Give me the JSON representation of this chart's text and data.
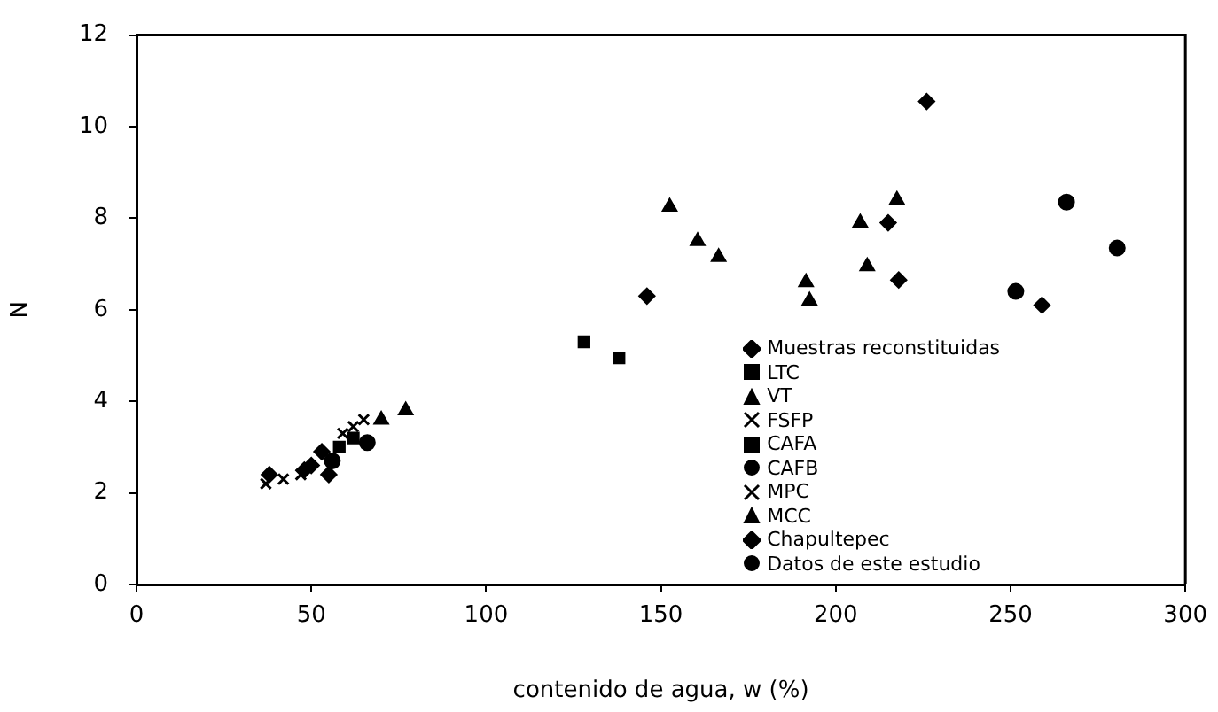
{
  "chart_data": {
    "type": "scatter",
    "xlabel": "contenido de agua, w (%)",
    "ylabel": "N",
    "xlim": [
      0,
      300
    ],
    "xticks": [
      0,
      50,
      100,
      150,
      200,
      250,
      300
    ],
    "ylim": [
      0,
      12
    ],
    "yticks": [
      0,
      2,
      4,
      6,
      8,
      10,
      12
    ],
    "grid": false,
    "legend": "bottom right",
    "series": [
      {
        "name": "Muestras reconstituidas",
        "color": "#000000",
        "marker": "diamond",
        "x": [
          38,
          48,
          53,
          55,
          50
        ],
        "values": [
          2.4,
          2.5,
          2.9,
          2.4,
          2.6
        ]
      },
      {
        "name": "LTC",
        "color": "#000000",
        "marker": "square",
        "x": [
          128,
          138
        ],
        "values": [
          5.3,
          4.95
        ]
      },
      {
        "name": "VT",
        "color": "#000000",
        "marker": "triangle",
        "x": [
          70,
          77
        ],
        "values": [
          3.6,
          3.8
        ]
      },
      {
        "name": "FSFP",
        "color": "#000000",
        "marker": "cross",
        "x": [
          59,
          62,
          65
        ],
        "values": [
          3.3,
          3.45,
          3.6
        ]
      },
      {
        "name": "CAFA",
        "color": "#000000",
        "marker": "square",
        "x": [
          58,
          62
        ],
        "values": [
          3.0,
          3.2
        ]
      },
      {
        "name": "CAFB",
        "color": "#000000",
        "marker": "circle",
        "x": [
          56,
          66
        ],
        "values": [
          2.7,
          3.1
        ]
      },
      {
        "name": "MPC",
        "color": "#000000",
        "marker": "cross",
        "x": [
          37,
          42,
          47
        ],
        "values": [
          2.2,
          2.3,
          2.4
        ]
      },
      {
        "name": "MCC",
        "color": "#000000",
        "marker": "triangle",
        "x": [
          152.5,
          160.5,
          166.5,
          191.5,
          192.5,
          207,
          209,
          217.5
        ],
        "values": [
          8.25,
          7.5,
          7.15,
          6.6,
          6.2,
          7.9,
          6.95,
          8.4
        ]
      },
      {
        "name": "Chapultepec",
        "color": "#000000",
        "marker": "diamond",
        "x": [
          146,
          226,
          215,
          218,
          259
        ],
        "values": [
          6.3,
          10.55,
          7.9,
          6.65,
          6.1
        ]
      },
      {
        "name": "Datos de este estudio",
        "color": "#000000",
        "marker": "circle",
        "x": [
          266,
          280.5,
          251.5
        ],
        "values": [
          8.35,
          7.35,
          6.4
        ]
      }
    ]
  }
}
